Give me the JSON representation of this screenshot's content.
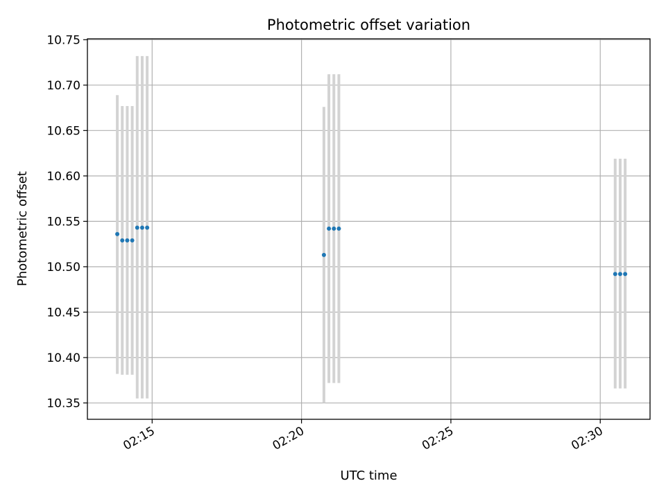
{
  "chart_data": {
    "type": "scatter",
    "title": "Photometric offset variation",
    "xlabel": "UTC time",
    "ylabel": "Photometric offset",
    "grid": true,
    "x_ticks": [
      "02:15",
      "02:20",
      "02:25",
      "02:30"
    ],
    "y_ticks": [
      "10.35",
      "10.40",
      "10.45",
      "10.50",
      "10.55",
      "10.60",
      "10.65",
      "10.70",
      "10.75"
    ],
    "xlim": [
      "02:12:50",
      "02:31:40"
    ],
    "ylim": [
      10.332,
      10.751
    ],
    "series": [
      {
        "points": [
          {
            "x": "02:13:50",
            "y": 10.536,
            "err_low": 10.382,
            "err_high": 10.689
          },
          {
            "x": "02:14:00",
            "y": 10.529,
            "err_low": 10.381,
            "err_high": 10.677
          },
          {
            "x": "02:14:10",
            "y": 10.529,
            "err_low": 10.381,
            "err_high": 10.677
          },
          {
            "x": "02:14:20",
            "y": 10.529,
            "err_low": 10.381,
            "err_high": 10.677
          },
          {
            "x": "02:14:30",
            "y": 10.543,
            "err_low": 10.355,
            "err_high": 10.732
          },
          {
            "x": "02:14:40",
            "y": 10.543,
            "err_low": 10.355,
            "err_high": 10.732
          },
          {
            "x": "02:14:50",
            "y": 10.543,
            "err_low": 10.355,
            "err_high": 10.732
          },
          {
            "x": "02:20:45",
            "y": 10.513,
            "err_low": 10.35,
            "err_high": 10.676
          },
          {
            "x": "02:20:55",
            "y": 10.542,
            "err_low": 10.372,
            "err_high": 10.712
          },
          {
            "x": "02:21:05",
            "y": 10.542,
            "err_low": 10.372,
            "err_high": 10.712
          },
          {
            "x": "02:21:15",
            "y": 10.542,
            "err_low": 10.372,
            "err_high": 10.712
          },
          {
            "x": "02:30:30",
            "y": 10.492,
            "err_low": 10.366,
            "err_high": 10.619
          },
          {
            "x": "02:30:40",
            "y": 10.492,
            "err_low": 10.366,
            "err_high": 10.619
          },
          {
            "x": "02:30:50",
            "y": 10.492,
            "err_low": 10.366,
            "err_high": 10.619
          }
        ]
      }
    ],
    "colors": {
      "points": "#1f77b4",
      "errorbars": "#d3d3d3",
      "grid": "#b0b0b0",
      "axes": "#000000"
    }
  }
}
